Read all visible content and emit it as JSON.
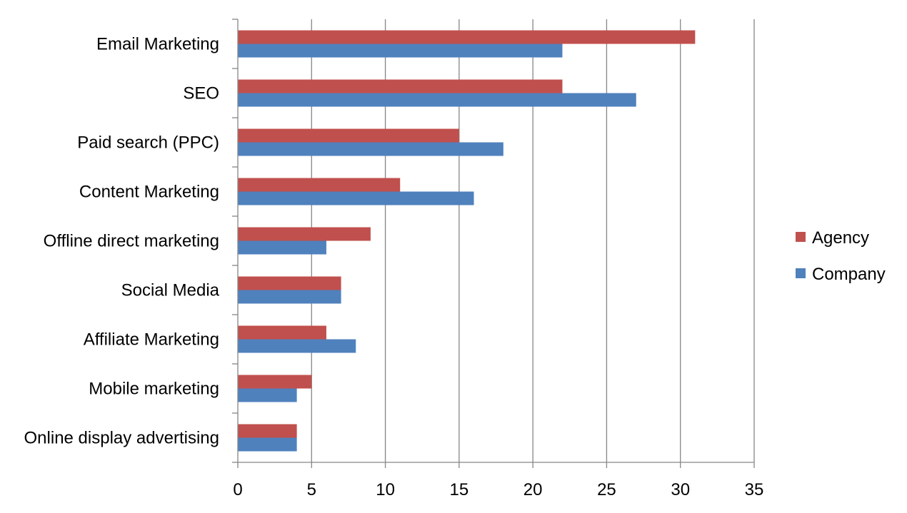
{
  "chart_data": {
    "type": "bar",
    "orientation": "horizontal",
    "categories": [
      "Email Marketing",
      "SEO",
      "Paid search (PPC)",
      "Content Marketing",
      "Offline direct marketing",
      "Social Media",
      "Affiliate Marketing",
      "Mobile marketing",
      "Online display advertising"
    ],
    "series": [
      {
        "name": "Agency",
        "color": "#C0504D",
        "values": [
          31,
          22,
          15,
          11,
          9,
          7,
          6,
          5,
          4
        ]
      },
      {
        "name": "Company",
        "color": "#4F81BD",
        "values": [
          22,
          27,
          18,
          16,
          6,
          7,
          8,
          4,
          4
        ]
      }
    ],
    "xlim": [
      0,
      35
    ],
    "xticks": [
      "0",
      "5",
      "10",
      "15",
      "20",
      "25",
      "30",
      "35"
    ],
    "grid": "vertical",
    "legend_position": "right",
    "title": "",
    "xlabel": "",
    "ylabel": ""
  }
}
